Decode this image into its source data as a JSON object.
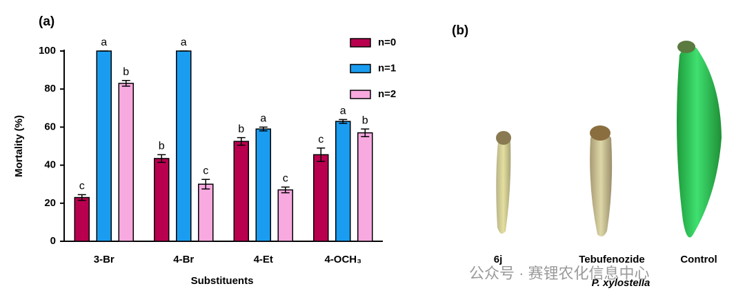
{
  "chart_data": {
    "type": "bar",
    "panel_label": "(a)",
    "xlabel": "Substituents",
    "ylabel": "Mortality (%)",
    "categories": [
      "3-Br",
      "4-Br",
      "4-Et",
      "4-OCH₃"
    ],
    "series": [
      {
        "name": "n=0",
        "color": "#b8004f",
        "values": [
          23,
          43.5,
          52.5,
          45.5
        ],
        "errors": [
          1.5,
          2,
          2,
          3.5
        ],
        "letters": [
          "c",
          "b",
          "b",
          "c"
        ]
      },
      {
        "name": "n=1",
        "color": "#1a9cf0",
        "values": [
          100,
          100,
          59,
          63
        ],
        "errors": [
          0,
          0,
          1,
          1
        ],
        "letters": [
          "a",
          "a",
          "a",
          "a"
        ]
      },
      {
        "name": "n=2",
        "color": "#f8a9e0",
        "values": [
          83,
          30,
          27,
          57
        ],
        "errors": [
          1.5,
          2.5,
          1.5,
          2
        ],
        "letters": [
          "b",
          "c",
          "c",
          "b"
        ]
      }
    ],
    "ylim": [
      0,
      100
    ],
    "yticks": [
      0,
      20,
      40,
      60,
      80,
      100
    ],
    "legend": "upper right"
  },
  "panel_b": {
    "label": "(b)",
    "specimens": [
      "6j",
      "Tebufenozide",
      "Control"
    ],
    "caption": "P. xylostella"
  },
  "watermark": "公众号 · 赛锂农化信息中心"
}
